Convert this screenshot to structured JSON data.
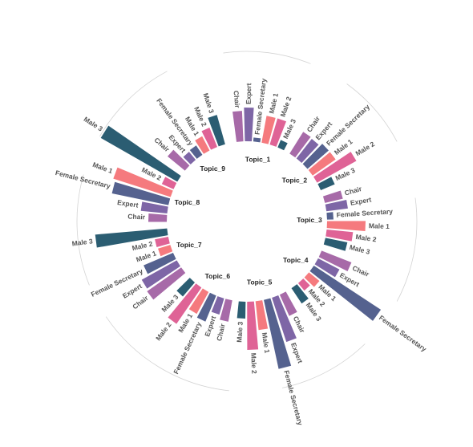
{
  "chart_data": {
    "type": "circular-bar",
    "title": "",
    "categories": [
      "Chair",
      "Expert",
      "Female Secretary",
      "Male 1",
      "Male 2",
      "Male 3"
    ],
    "colors": {
      "Chair": "#a76aa8",
      "Expert": "#7e66a6",
      "Female Secretary": "#55628f",
      "Male 1": "#f57a7e",
      "Male 2": "#df6396",
      "Male 3": "#2b5d72"
    },
    "groups": [
      {
        "name": "Topic_1",
        "values": {
          "Chair": 38,
          "Expert": 42,
          "Female Secretary": 5,
          "Male 1": 34,
          "Male 2": 34,
          "Male 3": 10
        }
      },
      {
        "name": "Topic_2",
        "values": {
          "Chair": 32,
          "Expert": 31,
          "Female Secretary": 35,
          "Male 1": 35,
          "Male 2": 56,
          "Male 3": 19
        }
      },
      {
        "name": "Topic_3",
        "values": {
          "Chair": 23,
          "Expert": 27,
          "Female Secretary": 8,
          "Male 1": 48,
          "Male 2": 33,
          "Male 3": 28
        }
      },
      {
        "name": "Topic_4",
        "values": {
          "Chair": 40,
          "Expert": 30,
          "Female Secretary": 100,
          "Male 1": 17,
          "Male 2": 12,
          "Male 3": 23
        }
      },
      {
        "name": "Topic_5",
        "values": {
          "Chair": 29,
          "Expert": 58,
          "Female Secretary": 88,
          "Male 1": 36,
          "Male 2": 60,
          "Male 3": 21
        }
      },
      {
        "name": "Topic_6",
        "values": {
          "Chair": 27,
          "Expert": 21,
          "Female Secretary": 35,
          "Male 1": 31,
          "Male 2": 55,
          "Male 3": 23
        }
      },
      {
        "name": "Topic_7",
        "values": {
          "Chair": 52,
          "Expert": 50,
          "Female Secretary": 40,
          "Male 1": 16,
          "Male 2": 17,
          "Male 3": 90
        }
      },
      {
        "name": "Topic_8",
        "values": {
          "Chair": 23,
          "Expert": 33,
          "Female Secretary": 72,
          "Male 1": 75,
          "Male 2": 16,
          "Male 3": 110
        }
      },
      {
        "name": "Topic_9",
        "values": {
          "Chair": 28,
          "Expert": 13,
          "Female Secretary": 14,
          "Male 1": 20,
          "Male 2": 26,
          "Male 3": 38
        }
      }
    ],
    "grid": "circular",
    "legend": "none"
  }
}
